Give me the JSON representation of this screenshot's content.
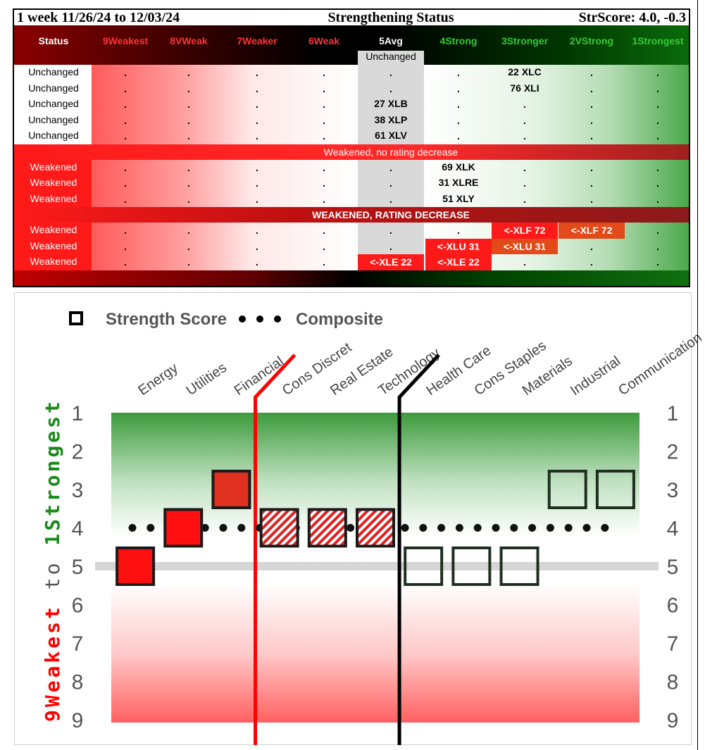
{
  "table": {
    "title_left": "1 week 11/26/24 to 12/03/24",
    "title_center": "Strengthening Status",
    "title_right": "StrScore: 4.0, -0.3",
    "status_header": "Status",
    "columns": [
      "9Weakest",
      "8VWeak",
      "7Weaker",
      "6Weak",
      "5Avg",
      "4Strong",
      "3Stronger",
      "2VStrong",
      "1Strongest"
    ],
    "column_colors": [
      "#ff3333",
      "#ff3333",
      "#ff3333",
      "#ff3333",
      "#ffffff",
      "#33cc33",
      "#33cc33",
      "#33cc33",
      "#33cc33"
    ],
    "avg_sub": "Unchanged",
    "dot": ".",
    "unchanged_rows": [
      {
        "status": "Unchanged",
        "cells": [
          ".",
          ".",
          ".",
          ".",
          ".",
          ".",
          "22 XLC",
          ".",
          "."
        ]
      },
      {
        "status": "Unchanged",
        "cells": [
          ".",
          ".",
          ".",
          ".",
          ".",
          ".",
          "76 XLI",
          ".",
          "."
        ]
      },
      {
        "status": "Unchanged",
        "cells": [
          ".",
          ".",
          ".",
          ".",
          "27 XLB",
          ".",
          ".",
          ".",
          "."
        ]
      },
      {
        "status": "Unchanged",
        "cells": [
          ".",
          ".",
          ".",
          ".",
          "38 XLP",
          ".",
          ".",
          ".",
          "."
        ]
      },
      {
        "status": "Unchanged",
        "cells": [
          ".",
          ".",
          ".",
          ".",
          "61 XLV",
          ".",
          ".",
          ".",
          "."
        ]
      }
    ],
    "section1_label": "Weakened, no rating decrease",
    "weakened_rows": [
      {
        "status": "Weakened",
        "cells": [
          ".",
          ".",
          ".",
          ".",
          ".",
          "69 XLK",
          ".",
          ".",
          "."
        ]
      },
      {
        "status": "Weakened",
        "cells": [
          ".",
          ".",
          ".",
          ".",
          ".",
          "31 XLRE",
          ".",
          ".",
          "."
        ]
      },
      {
        "status": "Weakened",
        "cells": [
          ".",
          ".",
          ".",
          ".",
          ".",
          "51 XLY",
          ".",
          ".",
          "."
        ]
      }
    ],
    "section2_label": "WEAKENED, RATING DECREASE",
    "decrease_rows": [
      {
        "status": "Weakened",
        "cells": [
          ".",
          ".",
          ".",
          ".",
          ".",
          ".",
          "<-XLF 72",
          "<-XLF 72",
          "."
        ],
        "move": [
          6,
          7
        ]
      },
      {
        "status": "Weakened",
        "cells": [
          ".",
          ".",
          ".",
          ".",
          ".",
          "<-XLU 31",
          "<-XLU 31",
          ".",
          "."
        ],
        "move": [
          5,
          6
        ]
      },
      {
        "status": "Weakened",
        "cells": [
          ".",
          ".",
          ".",
          ".",
          "<-XLE 22",
          "<-XLE 22",
          ".",
          ".",
          "."
        ],
        "move": [
          4,
          5
        ]
      }
    ]
  },
  "chart_data": {
    "type": "scatter",
    "legend": {
      "square_label": "Strength Score",
      "dots_label": "Composite"
    },
    "categories": [
      "Energy",
      "Utilities",
      "Financial",
      "Cons Discret",
      "Real Estate",
      "Technology",
      "Health Care",
      "Cons Staples",
      "Materials",
      "Industrial",
      "Communication"
    ],
    "y_left_label_red": "9Weakest",
    "y_left_label_mid": "to",
    "y_left_label_green": "1Strongest",
    "ylim": [
      1,
      9
    ],
    "y_ticks": [
      "1",
      "2",
      "3",
      "4",
      "5",
      "6",
      "7",
      "8",
      "9"
    ],
    "composite": 4.0,
    "strength_scores": [
      5,
      4,
      3,
      4,
      4,
      4,
      5,
      5,
      5,
      3,
      3
    ],
    "square_styles": [
      "solid-red",
      "solid-red",
      "solid-darkred",
      "hatched",
      "hatched",
      "hatched",
      "open",
      "open",
      "open",
      "open",
      "open"
    ],
    "red_divider_after": 2,
    "black_divider_after": 5,
    "colors": {
      "red": "#ff0000",
      "dark_red": "#e03020",
      "green_top": "#3a9a3a",
      "black": "#000000"
    }
  }
}
